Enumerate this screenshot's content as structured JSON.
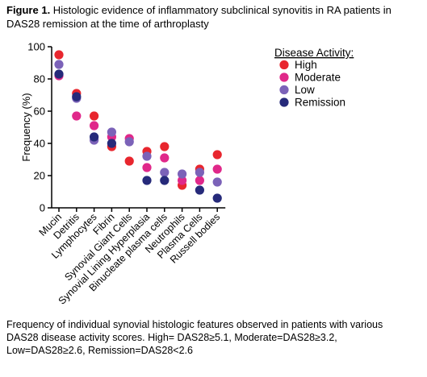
{
  "figure": {
    "title_bold": "Figure 1.",
    "title_text": " Histologic evidence of inflammatory subclinical synovitis in RA patients in DAS28 remission at the time of arthroplasty",
    "caption_lines": [
      "Frequency of individual synovial histologic features observed in patients with various",
      "DAS28 disease activity scores.  High= DAS28≥5.1, Moderate=DAS28≥3.2,",
      "Low=DAS28≥2.6, Remission=DAS28<2.6"
    ]
  },
  "chart_data": {
    "type": "scatter",
    "title": "",
    "xlabel": "",
    "ylabel": "Frequency (%)",
    "ylim": [
      0,
      100
    ],
    "yticks": [
      0,
      20,
      40,
      60,
      80,
      100
    ],
    "grid": false,
    "legend": {
      "title": "Disease Activity:",
      "position": "top-right"
    },
    "categories": [
      "Mucin",
      "Detritis",
      "Lymphocytes",
      "Fibrin",
      "Synovial Giant Cells",
      "Synovial Lining Hyperplasia",
      "Binucleate plasma cells",
      "Neutrophils",
      "Plasma Cells",
      "Russell bodies"
    ],
    "series": [
      {
        "name": "High",
        "color": "#e8262e",
        "values": [
          95,
          71,
          57,
          38,
          29,
          35,
          38,
          14,
          24,
          33
        ]
      },
      {
        "name": "Moderate",
        "color": "#e0288a",
        "values": [
          82,
          57,
          51,
          44,
          43,
          25,
          31,
          17,
          17,
          24
        ]
      },
      {
        "name": "Low",
        "color": "#7b62b8",
        "values": [
          89,
          68,
          42,
          47,
          41,
          32,
          22,
          21,
          22,
          16
        ]
      },
      {
        "name": "Remission",
        "color": "#262a7a",
        "values": [
          83,
          69,
          44,
          40,
          null,
          17,
          17,
          null,
          11,
          6
        ]
      }
    ]
  }
}
